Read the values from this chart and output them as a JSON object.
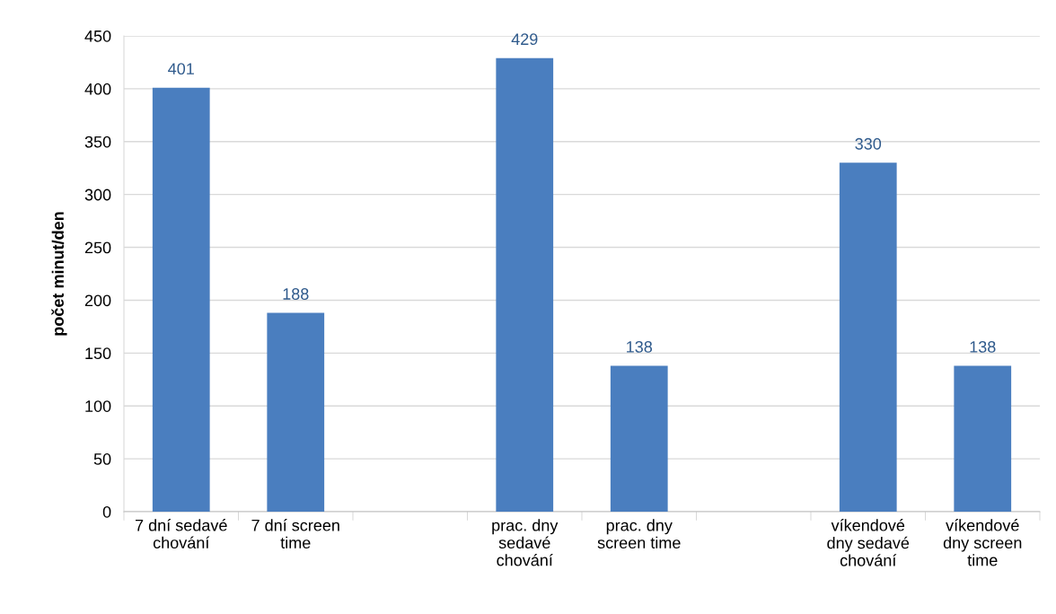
{
  "chart_data": {
    "type": "bar",
    "ylabel": "počet minut/den",
    "categories": [
      "7 dní sedavé\nchování",
      "7 dní screen\ntime",
      null,
      "prac. dny\nsedavé\nchování",
      "prac. dny\nscreen time",
      null,
      "víkendové\ndny sedavé\nchování",
      "víkendové\ndny screen\ntime"
    ],
    "values": [
      401,
      188,
      null,
      429,
      138,
      null,
      330,
      138
    ],
    "color": "#4a7ebf",
    "ylim": [
      0,
      450
    ],
    "yticks": [
      0,
      50,
      100,
      150,
      200,
      250,
      300,
      350,
      400,
      450
    ],
    "grid": "y",
    "data_labels": true
  }
}
